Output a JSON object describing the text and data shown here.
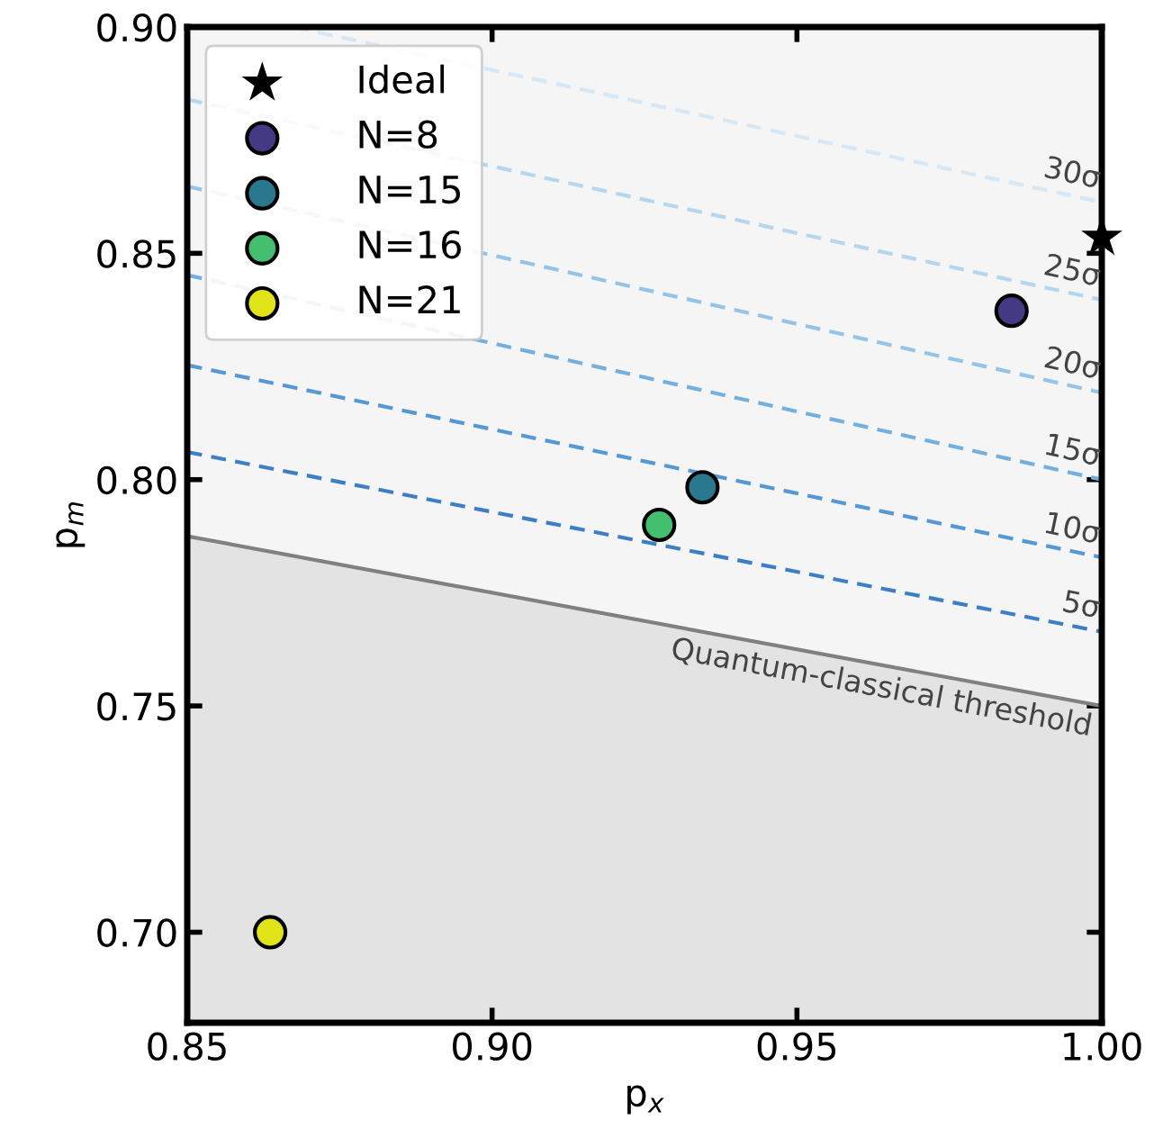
{
  "chart_data": {
    "type": "scatter",
    "xlabel": "p$_{x}$",
    "ylabel": "p$_{m}$",
    "xlim": [
      0.85,
      1.0
    ],
    "ylim": [
      0.68,
      0.9
    ],
    "xticks": [
      {
        "value": 0.85,
        "label": "0.85"
      },
      {
        "value": 0.9,
        "label": "0.90"
      },
      {
        "value": 0.95,
        "label": "0.95"
      },
      {
        "value": 1.0,
        "label": "1.00"
      }
    ],
    "yticks": [
      {
        "value": 0.7,
        "label": "0.70"
      },
      {
        "value": 0.75,
        "label": "0.75"
      },
      {
        "value": 0.8,
        "label": "0.80"
      },
      {
        "value": 0.85,
        "label": "0.85"
      },
      {
        "value": 0.9,
        "label": "0.90"
      }
    ],
    "grid": false,
    "legend": "top left",
    "series": [
      {
        "type": "area",
        "color": "#808080",
        "x": [
          0.85,
          1.0
        ],
        "values": [
          0.7875,
          0.75
        ]
      },
      {
        "type": "line",
        "line_style": "dashed",
        "color": "#3d7fc6",
        "x": [
          0.85,
          1.0
        ],
        "values": [
          0.8061,
          0.7664
        ]
      },
      {
        "type": "line",
        "line_style": "dashed",
        "color": "#5598d3",
        "x": [
          0.85,
          1.0
        ],
        "values": [
          0.8253,
          0.7828
        ]
      },
      {
        "type": "line",
        "line_style": "dashed",
        "color": "#74b0df",
        "x": [
          0.85,
          1.0
        ],
        "values": [
          0.8452,
          0.8
        ]
      },
      {
        "type": "line",
        "line_style": "dashed",
        "color": "#95c4e6",
        "x": [
          0.85,
          1.0
        ],
        "values": [
          0.8648,
          0.8192
        ]
      },
      {
        "type": "line",
        "line_style": "dashed",
        "color": "#b6d6ee",
        "x": [
          0.85,
          1.0
        ],
        "values": [
          0.884,
          0.8397
        ]
      },
      {
        "type": "line",
        "line_style": "dashed",
        "color": "#d6e7f5",
        "x": [
          0.8675,
          1.0
        ],
        "values": [
          0.9,
          0.8613
        ]
      },
      {
        "name": "Ideal",
        "marker": "star",
        "color": "#000000",
        "x": [
          1.0
        ],
        "values": [
          0.8535
        ]
      },
      {
        "name": "N=8",
        "marker": "circle",
        "color": "#443983",
        "x": [
          0.9852
        ],
        "values": [
          0.8373
        ]
      },
      {
        "name": "N=15",
        "marker": "circle",
        "color": "#2a788e",
        "x": [
          0.9345
        ],
        "values": [
          0.7983
        ]
      },
      {
        "name": "N=16",
        "marker": "circle",
        "color": "#44bf70",
        "x": [
          0.9274
        ],
        "values": [
          0.79
        ]
      },
      {
        "name": "N=21",
        "marker": "circle",
        "color": "#dfe318",
        "x": [
          0.8636
        ],
        "values": [
          0.7
        ]
      }
    ],
    "annotations": [
      "Quantum-classical threshold",
      "5σ",
      "10σ",
      "15σ",
      "20σ",
      "25σ",
      "30σ"
    ]
  }
}
